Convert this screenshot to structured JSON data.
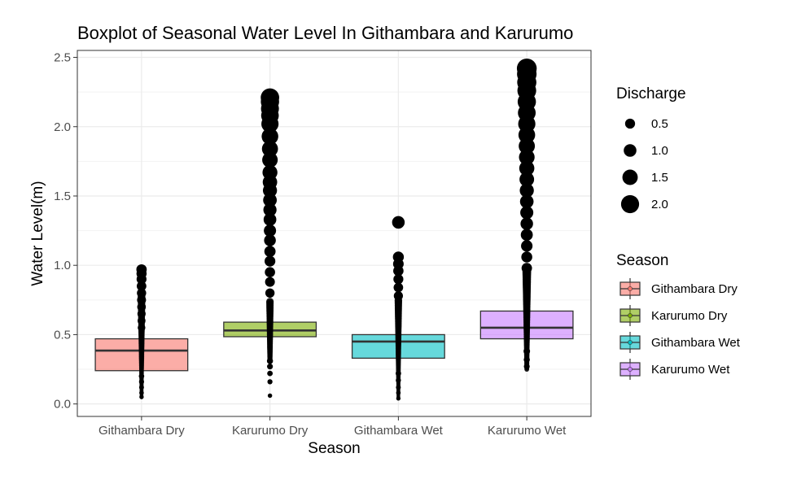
{
  "chart_data": {
    "type": "boxplot",
    "title": "Boxplot of Seasonal Water Level In Githambara and Karurumo",
    "xlabel": "Season",
    "ylabel": "Water Level(m)",
    "ylim": [
      -0.09,
      2.55
    ],
    "yticks": [
      0.0,
      0.5,
      1.0,
      1.5,
      2.0,
      2.5
    ],
    "ytick_labels": [
      "0.0",
      "0.5",
      "1.0",
      "1.5",
      "2.0",
      "2.5"
    ],
    "grid": true,
    "categories": [
      "Githambara Dry",
      "Karurumo Dry",
      "Githambara Wet",
      "Karurumo Wet"
    ],
    "boxes": [
      {
        "name": "Githambara Dry",
        "q1": 0.24,
        "median": 0.385,
        "q3": 0.47,
        "whisker_low": 0.05,
        "whisker_high": 0.8,
        "color": "#F8766D",
        "outliers_low": [
          0.05,
          0.08,
          0.12,
          0.16,
          0.2
        ],
        "outliers_high": [
          0.55,
          0.6,
          0.65,
          0.7,
          0.75,
          0.8,
          0.85,
          0.9,
          0.94,
          0.97
        ]
      },
      {
        "name": "Karurumo Dry",
        "q1": 0.485,
        "median": 0.53,
        "q3": 0.59,
        "whisker_low": 0.33,
        "whisker_high": 0.75,
        "color": "#7CAE00",
        "outliers_low": [
          0.06,
          0.16,
          0.22,
          0.27,
          0.31
        ],
        "outliers_high": [
          0.8,
          0.88,
          0.95,
          1.03,
          1.1,
          1.18,
          1.25,
          1.33,
          1.4,
          1.47,
          1.54,
          1.6,
          1.67,
          1.76,
          1.84,
          1.93,
          2.02,
          2.08,
          2.13,
          2.18,
          2.21
        ]
      },
      {
        "name": "Githambara Wet",
        "q1": 0.33,
        "median": 0.45,
        "q3": 0.5,
        "whisker_low": 0.04,
        "whisker_high": 0.75,
        "color": "#00BFC4",
        "outliers_low": [
          0.04,
          0.08,
          0.12,
          0.17,
          0.22
        ],
        "outliers_high": [
          0.78,
          0.84,
          0.9,
          0.96,
          1.01,
          1.06,
          1.31
        ]
      },
      {
        "name": "Karurumo Wet",
        "q1": 0.47,
        "median": 0.55,
        "q3": 0.67,
        "whisker_low": 0.25,
        "whisker_high": 0.96,
        "color": "#C77CFF",
        "outliers_low": [
          0.27,
          0.32,
          0.38
        ],
        "outliers_high": [
          0.98,
          1.06,
          1.14,
          1.22,
          1.3,
          1.38,
          1.46,
          1.54,
          1.62,
          1.7,
          1.78,
          1.86,
          1.94,
          2.02,
          2.1,
          2.18,
          2.26,
          2.32,
          2.38,
          2.42
        ]
      }
    ],
    "point_color": "#000000",
    "legend_discharge": {
      "title": "Discharge",
      "placement": "right",
      "entries": [
        {
          "label": "0.5",
          "size": 0.5
        },
        {
          "label": "1.0",
          "size": 1.0
        },
        {
          "label": "1.5",
          "size": 1.5
        },
        {
          "label": "2.0",
          "size": 2.0
        }
      ]
    },
    "legend_season": {
      "title": "Season",
      "placement": "right",
      "entries": [
        {
          "label": "Githambara Dry",
          "color": "#F8766D"
        },
        {
          "label": "Karurumo Dry",
          "color": "#7CAE00"
        },
        {
          "label": "Githambara Wet",
          "color": "#00BFC4"
        },
        {
          "label": "Karurumo Wet",
          "color": "#C77CFF"
        }
      ]
    }
  }
}
